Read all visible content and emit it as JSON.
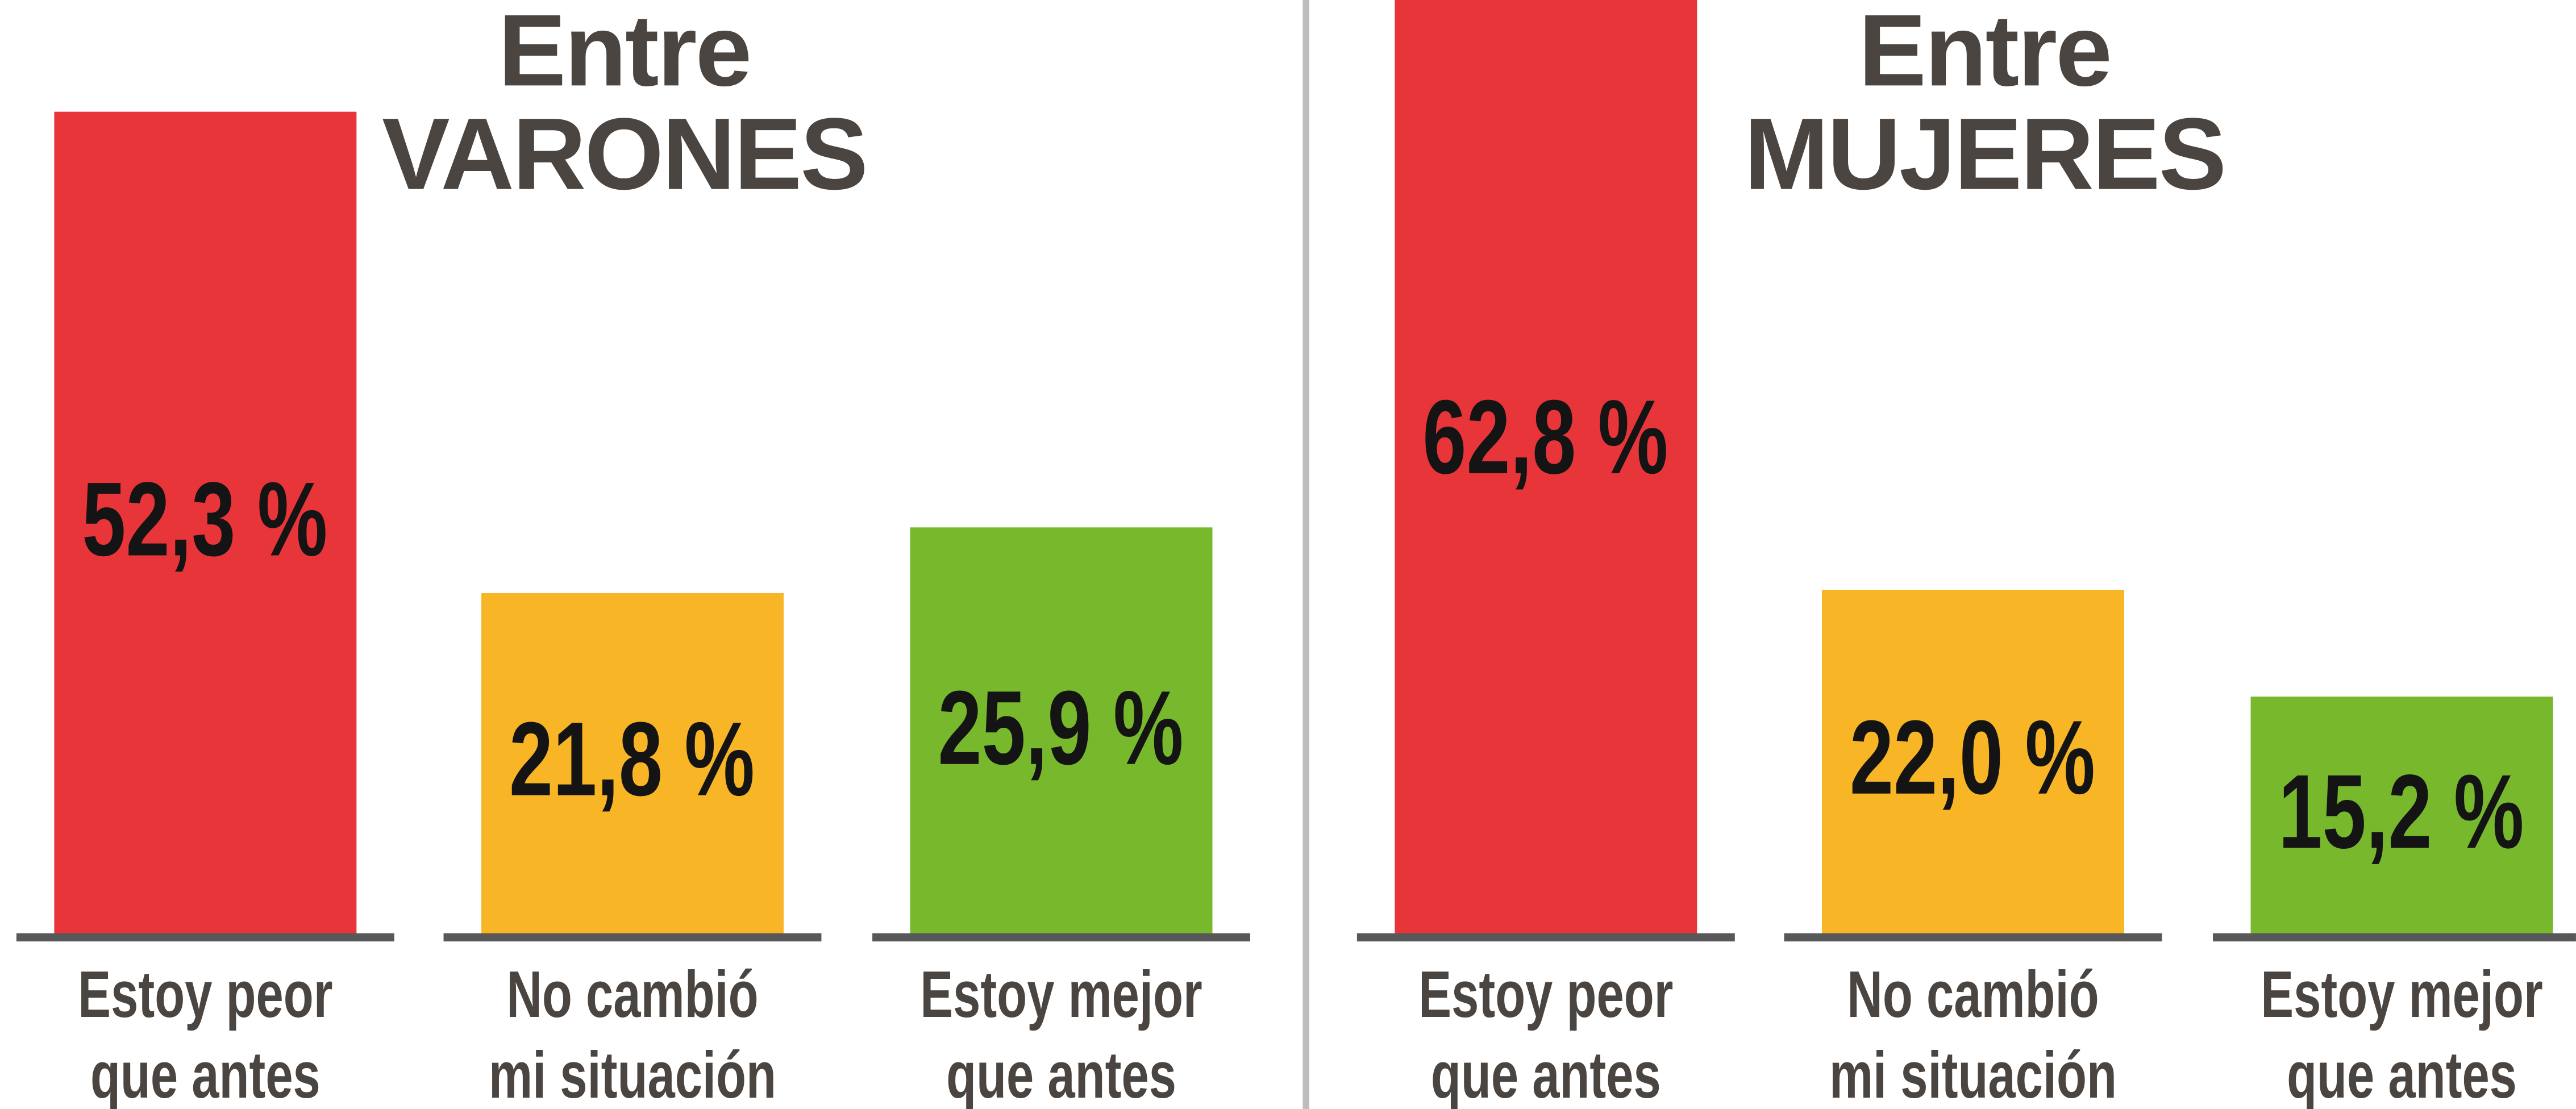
{
  "chart_data": [
    {
      "type": "bar",
      "title": "Entre VARONES",
      "categories": [
        "Estoy peor que antes",
        "No cambió mi situación",
        "Estoy mejor que antes"
      ],
      "values": [
        52.3,
        21.8,
        25.9
      ],
      "value_labels": [
        "52,3 %",
        "21,8 %",
        "25,9 %"
      ],
      "colors": [
        "#e8353a",
        "#f8b526",
        "#77b82c"
      ]
    },
    {
      "type": "bar",
      "title": "Entre MUJERES",
      "categories": [
        "Estoy peor que antes",
        "No cambió mi situación",
        "Estoy mejor que antes"
      ],
      "values": [
        62.8,
        22.0,
        15.2
      ],
      "value_labels": [
        "62,8 %",
        "22,0 %",
        "15,2 %"
      ],
      "colors": [
        "#e8353a",
        "#f8b526",
        "#77b82c"
      ]
    }
  ]
}
